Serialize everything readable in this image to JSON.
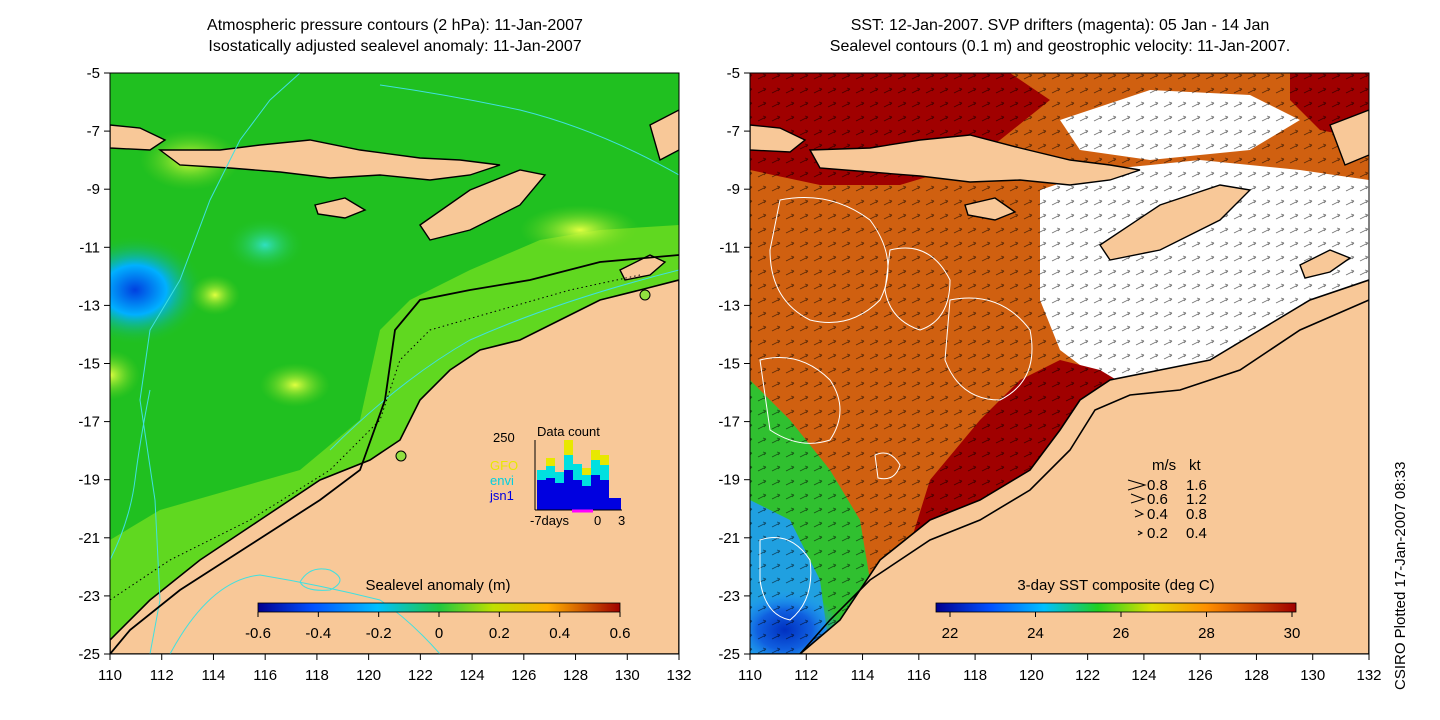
{
  "left_panel": {
    "title_line1": "Atmospheric pressure contours (2 hPa): 11-Jan-2007",
    "title_line2": "Isostatically adjusted sealevel anomaly: 11-Jan-2007",
    "colorbar_label": "Sealevel anomaly (m)",
    "colorbar_ticks": [
      "-0.6",
      "-0.4",
      "-0.2",
      "0",
      "0.2",
      "0.4",
      "0.6"
    ],
    "inset": {
      "title": "Data count",
      "ymax_label": "250",
      "legend": [
        {
          "name": "GFO",
          "color": "#e8e800"
        },
        {
          "name": "envi",
          "color": "#00e0e0"
        },
        {
          "name": "jsn1",
          "color": "#0000e0"
        }
      ],
      "x_labels": [
        "-7days",
        "0",
        "3"
      ]
    }
  },
  "right_panel": {
    "title_line1": "SST: 12-Jan-2007. SVP drifters (magenta): 05 Jan - 14 Jan",
    "title_line2": "Sealevel contours (0.1 m) and geostrophic velocity: 11-Jan-2007.",
    "colorbar_label": "3-day SST composite (deg C)",
    "colorbar_ticks": [
      "22",
      "24",
      "26",
      "28",
      "30"
    ],
    "velocity_legend": {
      "header_ms": "m/s",
      "header_kt": "kt",
      "rows": [
        {
          "ms": "0.8",
          "kt": "1.6"
        },
        {
          "ms": "0.6",
          "kt": "1.2"
        },
        {
          "ms": "0.4",
          "kt": "0.8"
        },
        {
          "ms": "0.2",
          "kt": "0.4"
        }
      ]
    }
  },
  "axes": {
    "x_ticks": [
      "110",
      "112",
      "114",
      "116",
      "118",
      "120",
      "122",
      "124",
      "126",
      "128",
      "130",
      "132"
    ],
    "y_ticks": [
      "-5",
      "-7",
      "-9",
      "-11",
      "-13",
      "-15",
      "-17",
      "-19",
      "-21",
      "-23",
      "-25"
    ]
  },
  "credit": "CSIRO Plotted 17-Jan-2007 08:33",
  "colors": {
    "land": "#f8c898",
    "ocean_green": "#20c020",
    "sst_red": "#a00000",
    "sst_orange": "#d06010"
  }
}
